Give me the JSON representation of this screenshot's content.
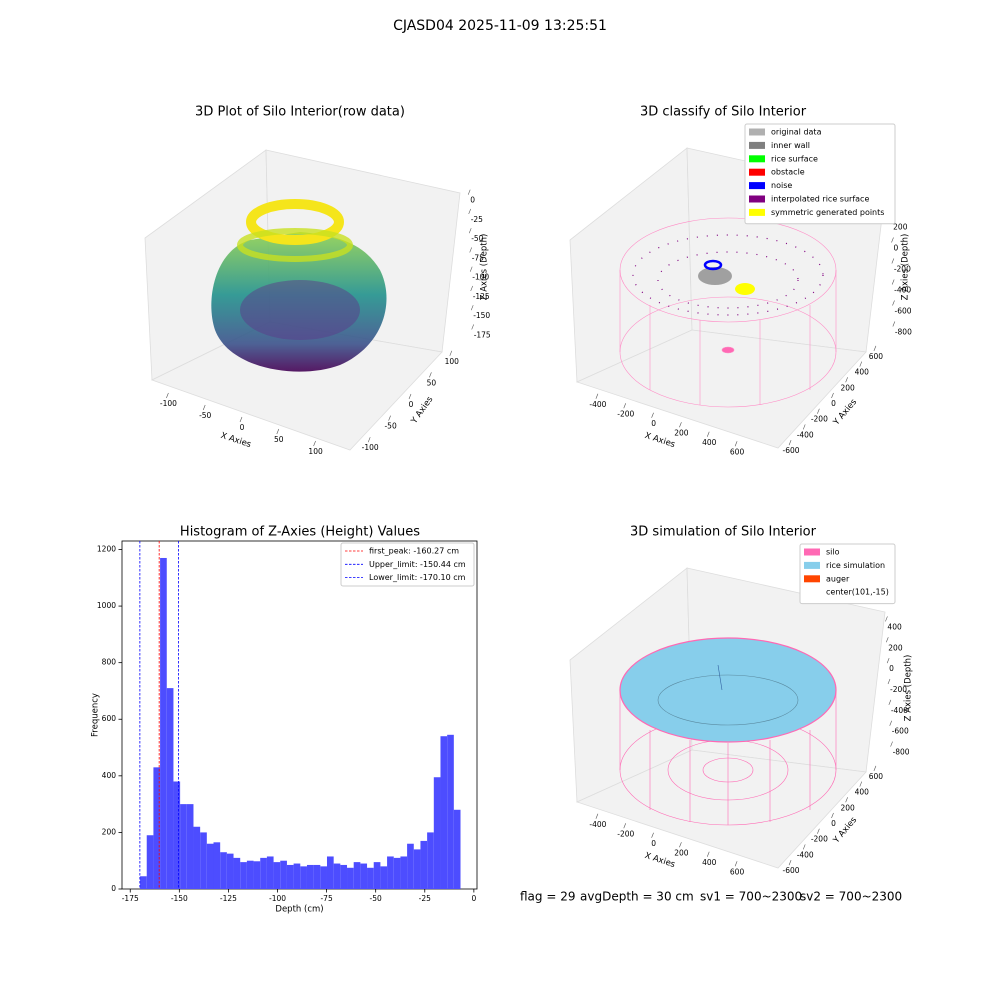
{
  "title": "CJASD04 2025-11-09 13:25:51",
  "chart_data": [
    {
      "type": "scatter3d",
      "title": "3D Plot of Silo Interior(row data)",
      "xlabel": "X Axies",
      "ylabel": "Y Axies",
      "zlabel": "Z Axies (Depth)",
      "xlim": [
        -125,
        125
      ],
      "ylim": [
        -125,
        125
      ],
      "zlim": [
        -190,
        10
      ],
      "xticks": [
        -100,
        -50,
        0,
        50,
        100
      ],
      "yticks": [
        -100,
        -50,
        0,
        50,
        100
      ],
      "zticks": [
        0,
        -25,
        -50,
        -75,
        -100,
        -125,
        -150,
        -175
      ]
    },
    {
      "type": "scatter3d",
      "title": "3D classify of Silo Interior",
      "xlabel": "X Axies",
      "ylabel": "Y Axies",
      "zlabel": "Z Axies (Depth)",
      "xlim": [
        -500,
        700
      ],
      "ylim": [
        -700,
        700
      ],
      "zlim": [
        -900,
        300
      ],
      "xticks": [
        -400,
        -200,
        0,
        200,
        400,
        600
      ],
      "yticks": [
        -600,
        -400,
        -200,
        0,
        200,
        400,
        600
      ],
      "zticks": [
        200,
        0,
        -200,
        -400,
        -600,
        -800
      ],
      "legend": [
        {
          "name": "original data",
          "color": "#b0b0b0"
        },
        {
          "name": "inner wall",
          "color": "#808080"
        },
        {
          "name": "rice surface",
          "color": "#00ff00"
        },
        {
          "name": "obstacle",
          "color": "#ff0000"
        },
        {
          "name": "noise",
          "color": "#0000ff"
        },
        {
          "name": "interpolated rice surface",
          "color": "#800080"
        },
        {
          "name": "symmetric generated points",
          "color": "#ffff00"
        }
      ]
    },
    {
      "type": "histogram",
      "title": "Histogram of Z-Axies (Height) Values",
      "xlabel": "Depth (cm)",
      "ylabel": "Frequency",
      "color": "#4d4dff",
      "bins": [
        -170,
        -166.6,
        -163.2,
        -159.8,
        -156.4,
        -153,
        -149.6,
        -146.2,
        -142.8,
        -139.4,
        -136,
        -132.6,
        -129.2,
        -125.8,
        -122.4,
        -119,
        -115.6,
        -112.2,
        -108.8,
        -105.4,
        -102,
        -98.6,
        -95.2,
        -91.8,
        -88.4,
        -85,
        -81.6,
        -78.2,
        -74.8,
        -71.4,
        -68,
        -64.6,
        -61.2,
        -57.8,
        -54.4,
        -51,
        -47.6,
        -44.2,
        -40.8,
        -37.4,
        -34,
        -30.6,
        -27.2,
        -23.8,
        -20.4,
        -17,
        -13.6,
        -10.2,
        -6.8
      ],
      "values": [
        45,
        190,
        430,
        1170,
        710,
        380,
        300,
        300,
        220,
        200,
        160,
        165,
        130,
        125,
        110,
        95,
        100,
        98,
        110,
        115,
        95,
        100,
        85,
        90,
        80,
        85,
        85,
        80,
        115,
        90,
        85,
        75,
        95,
        90,
        75,
        95,
        80,
        115,
        110,
        115,
        160,
        140,
        170,
        200,
        395,
        540,
        545,
        280
      ],
      "xlim": [
        -179.2,
        1.6
      ],
      "ylim": [
        0,
        1230
      ],
      "xticks": [
        -175,
        -150,
        -125,
        -100,
        -75,
        -50,
        -25,
        0
      ],
      "yticks": [
        0,
        200,
        400,
        600,
        800,
        1000,
        1200
      ],
      "vlines": [
        {
          "value": -160.27,
          "label": "first_peak: -160.27 cm",
          "color": "#ff0000"
        },
        {
          "value": -150.44,
          "label": "Upper_limit: -150.44 cm",
          "color": "#0000ff"
        },
        {
          "value": -170.1,
          "label": "Lower_limit: -170.10 cm",
          "color": "#0000ff"
        }
      ]
    },
    {
      "type": "surface3d",
      "title": "3D simulation of Silo Interior",
      "xlabel": "X Axies",
      "ylabel": "Y Axies",
      "zlabel": "Z Axies (Depth)",
      "xlim": [
        -500,
        700
      ],
      "ylim": [
        -700,
        700
      ],
      "zlim": [
        -900,
        500
      ],
      "xticks": [
        -400,
        -200,
        0,
        200,
        400,
        600
      ],
      "yticks": [
        -600,
        -400,
        -200,
        0,
        200,
        400,
        600
      ],
      "zticks": [
        400,
        200,
        0,
        -200,
        -400,
        -600,
        -800
      ],
      "legend": [
        {
          "name": "silo",
          "color": "#ff69b4"
        },
        {
          "name": "rice simulation",
          "color": "#87ceeb"
        },
        {
          "name": "auger",
          "color": "#ff4500"
        },
        {
          "name": "center(101,-15)",
          "color": "#ffffff"
        }
      ]
    }
  ],
  "status": [
    "flag = 29",
    "avgDepth = 30 cm",
    "sv1 = 700~2300",
    "sv2 = 700~2300"
  ]
}
